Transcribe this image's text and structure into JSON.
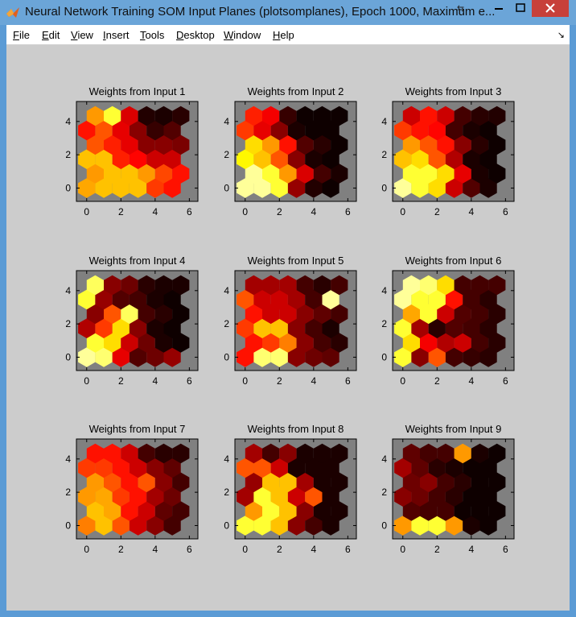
{
  "window": {
    "title": "Neural Network Training SOM Input Planes (plotsomplanes), Epoch 1000, Maximum e...",
    "controls": [
      "minimize",
      "maximize",
      "close"
    ]
  },
  "menu": [
    {
      "label": "File",
      "ul": "F",
      "rest": "ile"
    },
    {
      "label": "Edit",
      "ul": "E",
      "rest": "dit"
    },
    {
      "label": "View",
      "ul": "V",
      "rest": "iew"
    },
    {
      "label": "Insert",
      "ul": "I",
      "rest": "nsert"
    },
    {
      "label": "Tools",
      "ul": "T",
      "rest": "ools"
    },
    {
      "label": "Desktop",
      "ul": "D",
      "rest": "esktop"
    },
    {
      "label": "Window",
      "ul": "W",
      "rest": "indow"
    },
    {
      "label": "Help",
      "ul": "H",
      "rest": "elp"
    }
  ],
  "colors": {
    "plot_background": "#808080",
    "figure_background": "#cccccc",
    "colormap": "hot"
  },
  "chart_data": {
    "type": "heatmap",
    "grid": {
      "cols": 6,
      "rows": 6,
      "layout": "hexagonal"
    },
    "xticks": [
      "0",
      "2",
      "4",
      "6"
    ],
    "yticks": [
      "0",
      "2",
      "4"
    ],
    "xlim": [
      -0.6,
      6.5
    ],
    "ylim": [
      -0.8,
      5.2
    ],
    "value_range": [
      0,
      1
    ],
    "note_rows": "each plot's values are listed row by row from bottom (y=0) to top (y≈4.3)",
    "plots": [
      {
        "title": "Weights from Input 1",
        "values": [
          [
            0.62,
            0.66,
            0.66,
            0.66,
            0.46,
            0.4
          ],
          [
            0.6,
            0.66,
            0.66,
            0.6,
            0.48,
            0.4
          ],
          [
            0.66,
            0.66,
            0.42,
            0.38,
            0.3,
            0.3
          ],
          [
            0.5,
            0.42,
            0.34,
            0.2,
            0.2,
            0.18
          ],
          [
            0.4,
            0.5,
            0.34,
            0.2,
            0.08,
            0.12
          ],
          [
            0.6,
            0.8,
            0.32,
            0.05,
            0.04,
            0.06
          ]
        ]
      },
      {
        "title": "Weights from Input 2",
        "values": [
          [
            0.9,
            0.9,
            0.8,
            0.22,
            0.05,
            0.02
          ],
          [
            0.9,
            0.8,
            0.6,
            0.32,
            0.1,
            0.04
          ],
          [
            0.74,
            0.66,
            0.5,
            0.2,
            0.04,
            0.02
          ],
          [
            0.7,
            0.6,
            0.4,
            0.12,
            0.06,
            0.02
          ],
          [
            0.46,
            0.34,
            0.2,
            0.04,
            0.02,
            0.02
          ],
          [
            0.42,
            0.36,
            0.08,
            0.02,
            0.02,
            0.02
          ]
        ]
      },
      {
        "title": "Weights from Input 3",
        "values": [
          [
            0.9,
            0.8,
            0.7,
            0.3,
            0.12,
            0.04
          ],
          [
            0.8,
            0.8,
            0.7,
            0.34,
            0.04,
            0.02
          ],
          [
            0.66,
            0.7,
            0.5,
            0.26,
            0.04,
            0.02
          ],
          [
            0.6,
            0.5,
            0.4,
            0.2,
            0.06,
            0.02
          ],
          [
            0.46,
            0.4,
            0.38,
            0.1,
            0.04,
            0.02
          ],
          [
            0.3,
            0.4,
            0.3,
            0.1,
            0.06,
            0.05
          ]
        ]
      },
      {
        "title": "Weights from Input 4",
        "values": [
          [
            0.9,
            0.86,
            0.34,
            0.12,
            0.16,
            0.22
          ],
          [
            0.8,
            0.7,
            0.3,
            0.16,
            0.04,
            0.02
          ],
          [
            0.26,
            0.46,
            0.7,
            0.2,
            0.04,
            0.02
          ],
          [
            0.2,
            0.5,
            0.84,
            0.1,
            0.06,
            0.02
          ],
          [
            0.8,
            0.22,
            0.12,
            0.1,
            0.04,
            0.02
          ],
          [
            0.84,
            0.2,
            0.16,
            0.06,
            0.04,
            0.04
          ]
        ]
      },
      {
        "title": "Weights from Input 5",
        "values": [
          [
            0.4,
            0.86,
            0.86,
            0.2,
            0.16,
            0.14
          ],
          [
            0.4,
            0.46,
            0.56,
            0.2,
            0.1,
            0.06
          ],
          [
            0.46,
            0.66,
            0.66,
            0.2,
            0.1,
            0.04
          ],
          [
            0.4,
            0.3,
            0.3,
            0.2,
            0.14,
            0.1
          ],
          [
            0.5,
            0.3,
            0.3,
            0.24,
            0.1,
            0.9
          ],
          [
            0.24,
            0.24,
            0.24,
            0.1,
            0.06,
            0.1
          ]
        ]
      },
      {
        "title": "Weights from Input 6",
        "values": [
          [
            0.8,
            0.2,
            0.5,
            0.1,
            0.08,
            0.06
          ],
          [
            0.7,
            0.36,
            0.26,
            0.3,
            0.1,
            0.06
          ],
          [
            0.8,
            0.24,
            0.06,
            0.12,
            0.1,
            0.06
          ],
          [
            0.62,
            0.8,
            0.3,
            0.12,
            0.1,
            0.06
          ],
          [
            0.9,
            0.8,
            0.8,
            0.4,
            0.1,
            0.06
          ],
          [
            0.9,
            0.86,
            0.7,
            0.1,
            0.1,
            0.1
          ]
        ]
      },
      {
        "title": "Weights from Input 7",
        "values": [
          [
            0.56,
            0.66,
            0.5,
            0.3,
            0.2,
            0.1
          ],
          [
            0.66,
            0.62,
            0.4,
            0.3,
            0.14,
            0.1
          ],
          [
            0.6,
            0.62,
            0.46,
            0.4,
            0.24,
            0.16
          ],
          [
            0.6,
            0.5,
            0.4,
            0.5,
            0.2,
            0.1
          ],
          [
            0.46,
            0.46,
            0.4,
            0.3,
            0.2,
            0.14
          ],
          [
            0.4,
            0.4,
            0.3,
            0.1,
            0.06,
            0.06
          ]
        ]
      },
      {
        "title": "Weights from Input 8",
        "values": [
          [
            0.8,
            0.8,
            0.66,
            0.2,
            0.1,
            0.04
          ],
          [
            0.6,
            0.8,
            0.66,
            0.2,
            0.04,
            0.04
          ],
          [
            0.24,
            0.8,
            0.66,
            0.3,
            0.5,
            0.04
          ],
          [
            0.22,
            0.66,
            0.66,
            0.24,
            0.04,
            0.04
          ],
          [
            0.5,
            0.5,
            0.3,
            0.04,
            0.04,
            0.04
          ],
          [
            0.24,
            0.1,
            0.2,
            0.04,
            0.04,
            0.04
          ]
        ]
      },
      {
        "title": "Weights from Input 9",
        "values": [
          [
            0.6,
            0.8,
            0.8,
            0.6,
            0.04,
            0.02
          ],
          [
            0.12,
            0.1,
            0.1,
            0.02,
            0.02,
            0.02
          ],
          [
            0.2,
            0.16,
            0.1,
            0.06,
            0.02,
            0.02
          ],
          [
            0.16,
            0.2,
            0.1,
            0.06,
            0.02,
            0.02
          ],
          [
            0.24,
            0.14,
            0.06,
            0.04,
            0.02,
            0.02
          ],
          [
            0.14,
            0.1,
            0.1,
            0.6,
            0.04,
            0.02
          ]
        ]
      }
    ]
  }
}
